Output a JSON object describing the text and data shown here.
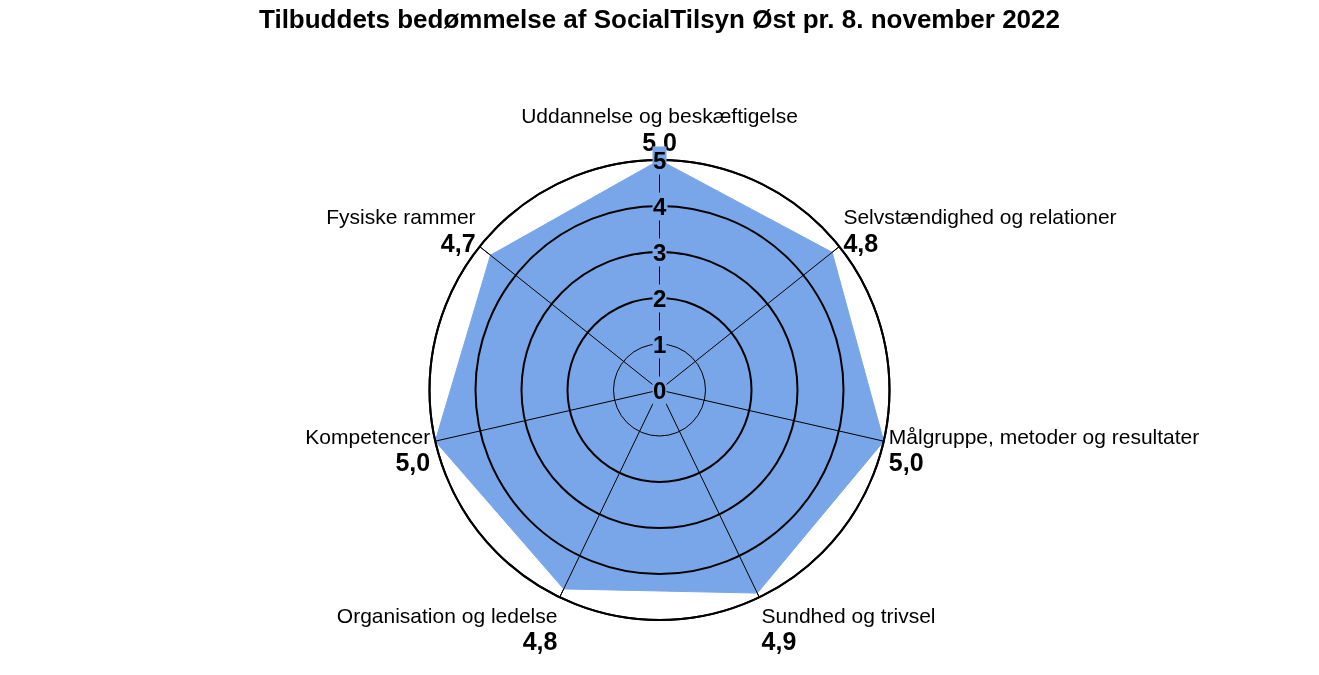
{
  "chart_data": {
    "type": "radar",
    "title": "Tilbuddets bedømmelse af SocialTilsyn Øst pr. 8. november 2022",
    "categories": [
      "Uddannelse og beskæftigelse",
      "Selvstændighed og relationer",
      "Målgruppe, metoder og resultater",
      "Sundhed og trivsel",
      "Organisation og ledelse",
      "Kompetencer",
      "Fysiske rammer"
    ],
    "series": [
      {
        "color": "#78a6e8",
        "values": [
          5.0,
          4.8,
          5.0,
          4.9,
          4.8,
          5.0,
          4.7
        ],
        "value_labels": [
          "5,0",
          "4,8",
          "5,0",
          "4,9",
          "4,8",
          "5,0",
          "4,7"
        ]
      }
    ],
    "ylim": [
      0,
      5
    ],
    "yticks": [
      0,
      1,
      2,
      3,
      4,
      5
    ],
    "grid": true,
    "marker": "none"
  }
}
